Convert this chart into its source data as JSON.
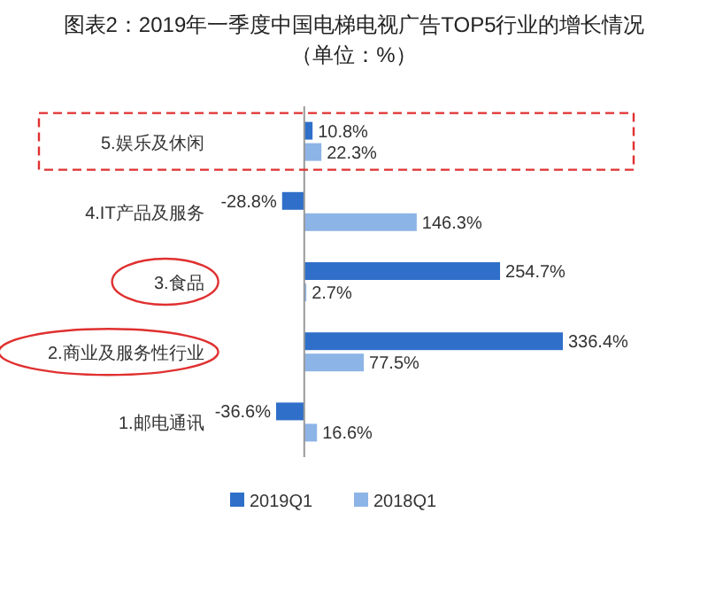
{
  "chart_data": {
    "type": "bar",
    "orientation": "horizontal",
    "title": "图表2：2019年一季度中国电梯电视广告TOP5行业的增长情况",
    "subtitle": "（单位：%）",
    "categories": [
      "5.娱乐及休闲",
      "4.IT产品及服务",
      "3.食品",
      "2.商业及服务性行业",
      "1.邮电通讯"
    ],
    "series": [
      {
        "name": "2019Q1",
        "color": "#2f6fc9",
        "values": [
          10.8,
          -28.8,
          254.7,
          336.4,
          -36.6
        ],
        "value_labels": [
          "10.8%",
          "-28.8%",
          "254.7%",
          "336.4%",
          "-36.6%"
        ]
      },
      {
        "name": "2018Q1",
        "color": "#8db4e6",
        "values": [
          22.3,
          146.3,
          2.7,
          77.5,
          16.6
        ],
        "value_labels": [
          "22.3%",
          "146.3%",
          "2.7%",
          "77.5%",
          "16.6%"
        ]
      }
    ],
    "legend": "bottom"
  }
}
